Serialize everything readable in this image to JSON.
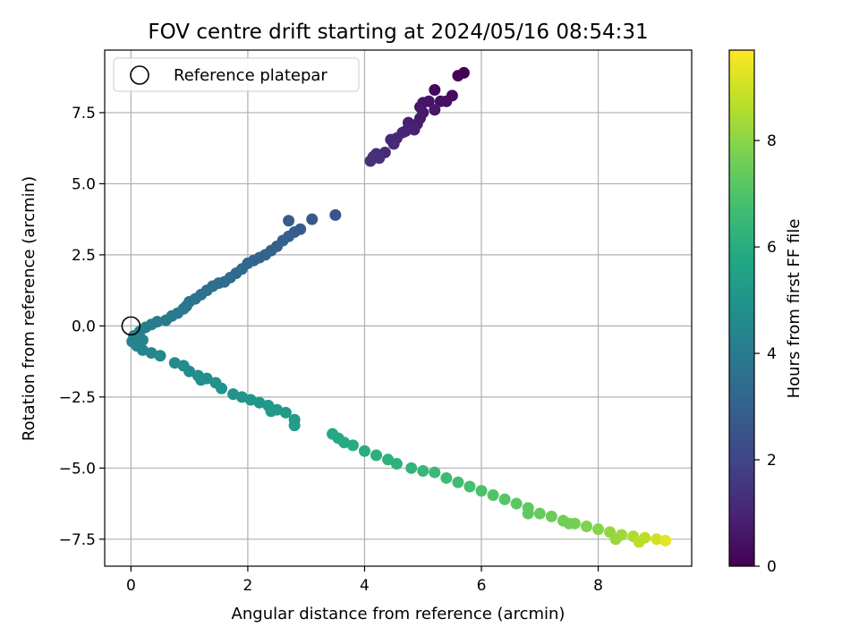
{
  "chart_data": {
    "type": "scatter",
    "title": "FOV centre drift starting at 2024/05/16 08:54:31",
    "xlabel": "Angular distance from reference (arcmin)",
    "ylabel": "Rotation from reference (arcmin)",
    "xlim": [
      -0.45,
      9.6
    ],
    "ylim": [
      -8.45,
      9.7
    ],
    "xticks": [
      {
        "v": 0,
        "label": "0"
      },
      {
        "v": 2,
        "label": "2"
      },
      {
        "v": 4,
        "label": "4"
      },
      {
        "v": 6,
        "label": "6"
      },
      {
        "v": 8,
        "label": "8"
      }
    ],
    "yticks": [
      {
        "v": -7.5,
        "label": "−7.5"
      },
      {
        "v": -5.0,
        "label": "−5.0"
      },
      {
        "v": -2.5,
        "label": "−2.5"
      },
      {
        "v": 0.0,
        "label": "0.0"
      },
      {
        "v": 2.5,
        "label": "2.5"
      },
      {
        "v": 5.0,
        "label": "5.0"
      },
      {
        "v": 7.5,
        "label": "7.5"
      }
    ],
    "grid": true,
    "legend": {
      "placement": "upper-left",
      "entries": [
        {
          "label": "Reference platepar",
          "marker": "open-circle"
        }
      ]
    },
    "reference_point": {
      "x": 0,
      "y": 0
    },
    "colorbar": {
      "label": "Hours from first FF file",
      "range": [
        0,
        9.7
      ],
      "colormap": "viridis",
      "ticks": [
        {
          "v": 0,
          "label": "0"
        },
        {
          "v": 2,
          "label": "2"
        },
        {
          "v": 4,
          "label": "4"
        },
        {
          "v": 6,
          "label": "6"
        },
        {
          "v": 8,
          "label": "8"
        }
      ]
    },
    "series": [
      {
        "point_fields": [
          "x",
          "y",
          "hours"
        ],
        "points": [
          [
            5.7,
            8.9,
            0.0
          ],
          [
            5.6,
            8.8,
            0.1
          ],
          [
            5.2,
            8.3,
            0.2
          ],
          [
            5.5,
            8.1,
            0.3
          ],
          [
            5.4,
            7.9,
            0.4
          ],
          [
            5.3,
            7.9,
            0.45
          ],
          [
            5.1,
            7.9,
            0.5
          ],
          [
            5.0,
            7.85,
            0.55
          ],
          [
            4.95,
            7.7,
            0.6
          ],
          [
            5.2,
            7.6,
            0.65
          ],
          [
            5.0,
            7.5,
            0.7
          ],
          [
            4.95,
            7.3,
            0.75
          ],
          [
            4.9,
            7.1,
            0.8
          ],
          [
            4.75,
            7.15,
            0.85
          ],
          [
            4.85,
            6.9,
            0.9
          ],
          [
            4.7,
            6.85,
            0.95
          ],
          [
            4.65,
            6.8,
            1.0
          ],
          [
            4.55,
            6.6,
            1.05
          ],
          [
            4.45,
            6.55,
            1.1
          ],
          [
            4.5,
            6.4,
            1.15
          ],
          [
            4.35,
            6.1,
            1.2
          ],
          [
            4.2,
            6.05,
            1.25
          ],
          [
            4.15,
            5.95,
            1.3
          ],
          [
            4.25,
            5.9,
            1.35
          ],
          [
            4.1,
            5.8,
            1.4
          ],
          [
            3.5,
            3.9,
            2.6
          ],
          [
            3.1,
            3.75,
            2.7
          ],
          [
            2.7,
            3.7,
            2.75
          ],
          [
            2.9,
            3.4,
            2.8
          ],
          [
            2.8,
            3.3,
            2.85
          ],
          [
            2.7,
            3.15,
            2.9
          ],
          [
            2.6,
            3.0,
            2.95
          ],
          [
            2.5,
            2.8,
            3.0
          ],
          [
            2.4,
            2.65,
            3.05
          ],
          [
            2.3,
            2.5,
            3.1
          ],
          [
            2.2,
            2.4,
            3.15
          ],
          [
            2.1,
            2.3,
            3.2
          ],
          [
            2.0,
            2.2,
            3.25
          ],
          [
            1.9,
            2.0,
            3.3
          ],
          [
            1.8,
            1.85,
            3.35
          ],
          [
            1.7,
            1.7,
            3.4
          ],
          [
            1.6,
            1.55,
            3.45
          ],
          [
            1.5,
            1.5,
            3.5
          ],
          [
            1.4,
            1.4,
            3.55
          ],
          [
            1.3,
            1.25,
            3.6
          ],
          [
            1.2,
            1.1,
            3.65
          ],
          [
            1.1,
            0.95,
            3.7
          ],
          [
            1.0,
            0.85,
            3.75
          ],
          [
            0.95,
            0.7,
            3.8
          ],
          [
            0.9,
            0.6,
            3.85
          ],
          [
            0.8,
            0.45,
            3.9
          ],
          [
            0.7,
            0.35,
            3.95
          ],
          [
            0.6,
            0.2,
            4.0
          ],
          [
            0.45,
            0.15,
            4.05
          ],
          [
            0.35,
            0.05,
            4.1
          ],
          [
            0.25,
            -0.05,
            4.15
          ],
          [
            0.15,
            -0.2,
            4.2
          ],
          [
            0.05,
            -0.35,
            4.25
          ],
          [
            0.02,
            -0.55,
            4.3
          ],
          [
            0.1,
            -0.7,
            4.35
          ],
          [
            0.2,
            -0.85,
            4.4
          ],
          [
            0.35,
            -0.95,
            4.45
          ],
          [
            0.5,
            -1.05,
            4.5
          ],
          [
            0.75,
            -1.3,
            4.6
          ],
          [
            0.9,
            -1.4,
            4.65
          ],
          [
            1.0,
            -1.6,
            4.7
          ],
          [
            1.15,
            -1.75,
            4.75
          ],
          [
            1.3,
            -1.85,
            4.8
          ],
          [
            1.45,
            -2.0,
            4.85
          ],
          [
            1.55,
            -2.2,
            4.9
          ],
          [
            1.75,
            -2.4,
            4.95
          ],
          [
            1.9,
            -2.5,
            5.0
          ],
          [
            2.05,
            -2.6,
            5.05
          ],
          [
            2.2,
            -2.7,
            5.1
          ],
          [
            2.35,
            -2.8,
            5.15
          ],
          [
            2.5,
            -2.95,
            5.2
          ],
          [
            2.65,
            -3.05,
            5.25
          ],
          [
            2.8,
            -3.3,
            5.3
          ],
          [
            2.8,
            -3.5,
            5.35
          ],
          [
            3.45,
            -3.8,
            5.8
          ],
          [
            3.55,
            -3.95,
            5.85
          ],
          [
            3.65,
            -4.1,
            5.9
          ],
          [
            3.8,
            -4.2,
            5.95
          ],
          [
            4.0,
            -4.4,
            6.0
          ],
          [
            4.2,
            -4.55,
            6.1
          ],
          [
            4.4,
            -4.7,
            6.15
          ],
          [
            4.55,
            -4.85,
            6.2
          ],
          [
            4.8,
            -5.0,
            6.3
          ],
          [
            5.0,
            -5.1,
            6.4
          ],
          [
            5.2,
            -5.15,
            6.5
          ],
          [
            5.4,
            -5.35,
            6.6
          ],
          [
            5.6,
            -5.5,
            6.7
          ],
          [
            5.8,
            -5.65,
            6.8
          ],
          [
            6.0,
            -5.8,
            6.9
          ],
          [
            6.2,
            -5.95,
            7.0
          ],
          [
            6.4,
            -6.1,
            7.1
          ],
          [
            6.6,
            -6.25,
            7.2
          ],
          [
            6.8,
            -6.4,
            7.3
          ],
          [
            7.0,
            -6.6,
            7.4
          ],
          [
            7.2,
            -6.7,
            7.5
          ],
          [
            7.4,
            -6.85,
            7.6
          ],
          [
            7.6,
            -6.95,
            7.7
          ],
          [
            7.8,
            -7.05,
            7.8
          ],
          [
            8.0,
            -7.15,
            7.9
          ],
          [
            8.2,
            -7.25,
            8.1
          ],
          [
            8.4,
            -7.35,
            8.3
          ],
          [
            8.6,
            -7.4,
            8.5
          ],
          [
            8.8,
            -7.45,
            8.7
          ],
          [
            9.0,
            -7.5,
            9.0
          ],
          [
            9.15,
            -7.55,
            9.3
          ],
          [
            6.8,
            -6.6,
            7.3
          ],
          [
            7.5,
            -6.95,
            7.6
          ],
          [
            8.3,
            -7.5,
            8.2
          ],
          [
            8.7,
            -7.6,
            8.7
          ],
          [
            2.4,
            -3.0,
            5.15
          ],
          [
            1.2,
            -1.9,
            4.8
          ],
          [
            0.2,
            -0.5,
            4.3
          ]
        ]
      }
    ]
  }
}
